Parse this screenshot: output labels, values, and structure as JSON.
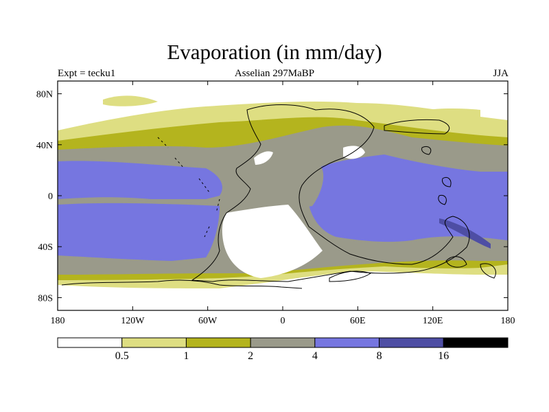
{
  "title": "Evaporation (in mm/day)",
  "experiment_label": "Expt = tecku1",
  "period_label": "Asselian 297MaBP",
  "season_label": "JJA",
  "map": {
    "projection": "equirectangular",
    "lon_range": [
      -180,
      180
    ],
    "lat_range": [
      -90,
      90
    ],
    "x_ticks": [
      {
        "value": -180,
        "label": "180"
      },
      {
        "value": -120,
        "label": "120W"
      },
      {
        "value": -60,
        "label": "60W"
      },
      {
        "value": 0,
        "label": "0"
      },
      {
        "value": 60,
        "label": "60E"
      },
      {
        "value": 120,
        "label": "120E"
      },
      {
        "value": 180,
        "label": "180"
      }
    ],
    "y_ticks": [
      {
        "value": 80,
        "label": "80N"
      },
      {
        "value": 40,
        "label": "40N"
      },
      {
        "value": 0,
        "label": "0"
      },
      {
        "value": -40,
        "label": "40S"
      },
      {
        "value": -80,
        "label": "80S"
      }
    ]
  },
  "colorbar": {
    "levels": [
      "0.5",
      "1",
      "2",
      "4",
      "8",
      "16"
    ],
    "colors": [
      "#ffffff",
      "#dede82",
      "#b4b41e",
      "#9a9a8a",
      "#7676e0",
      "#4e4ea4",
      "#000000"
    ]
  }
}
